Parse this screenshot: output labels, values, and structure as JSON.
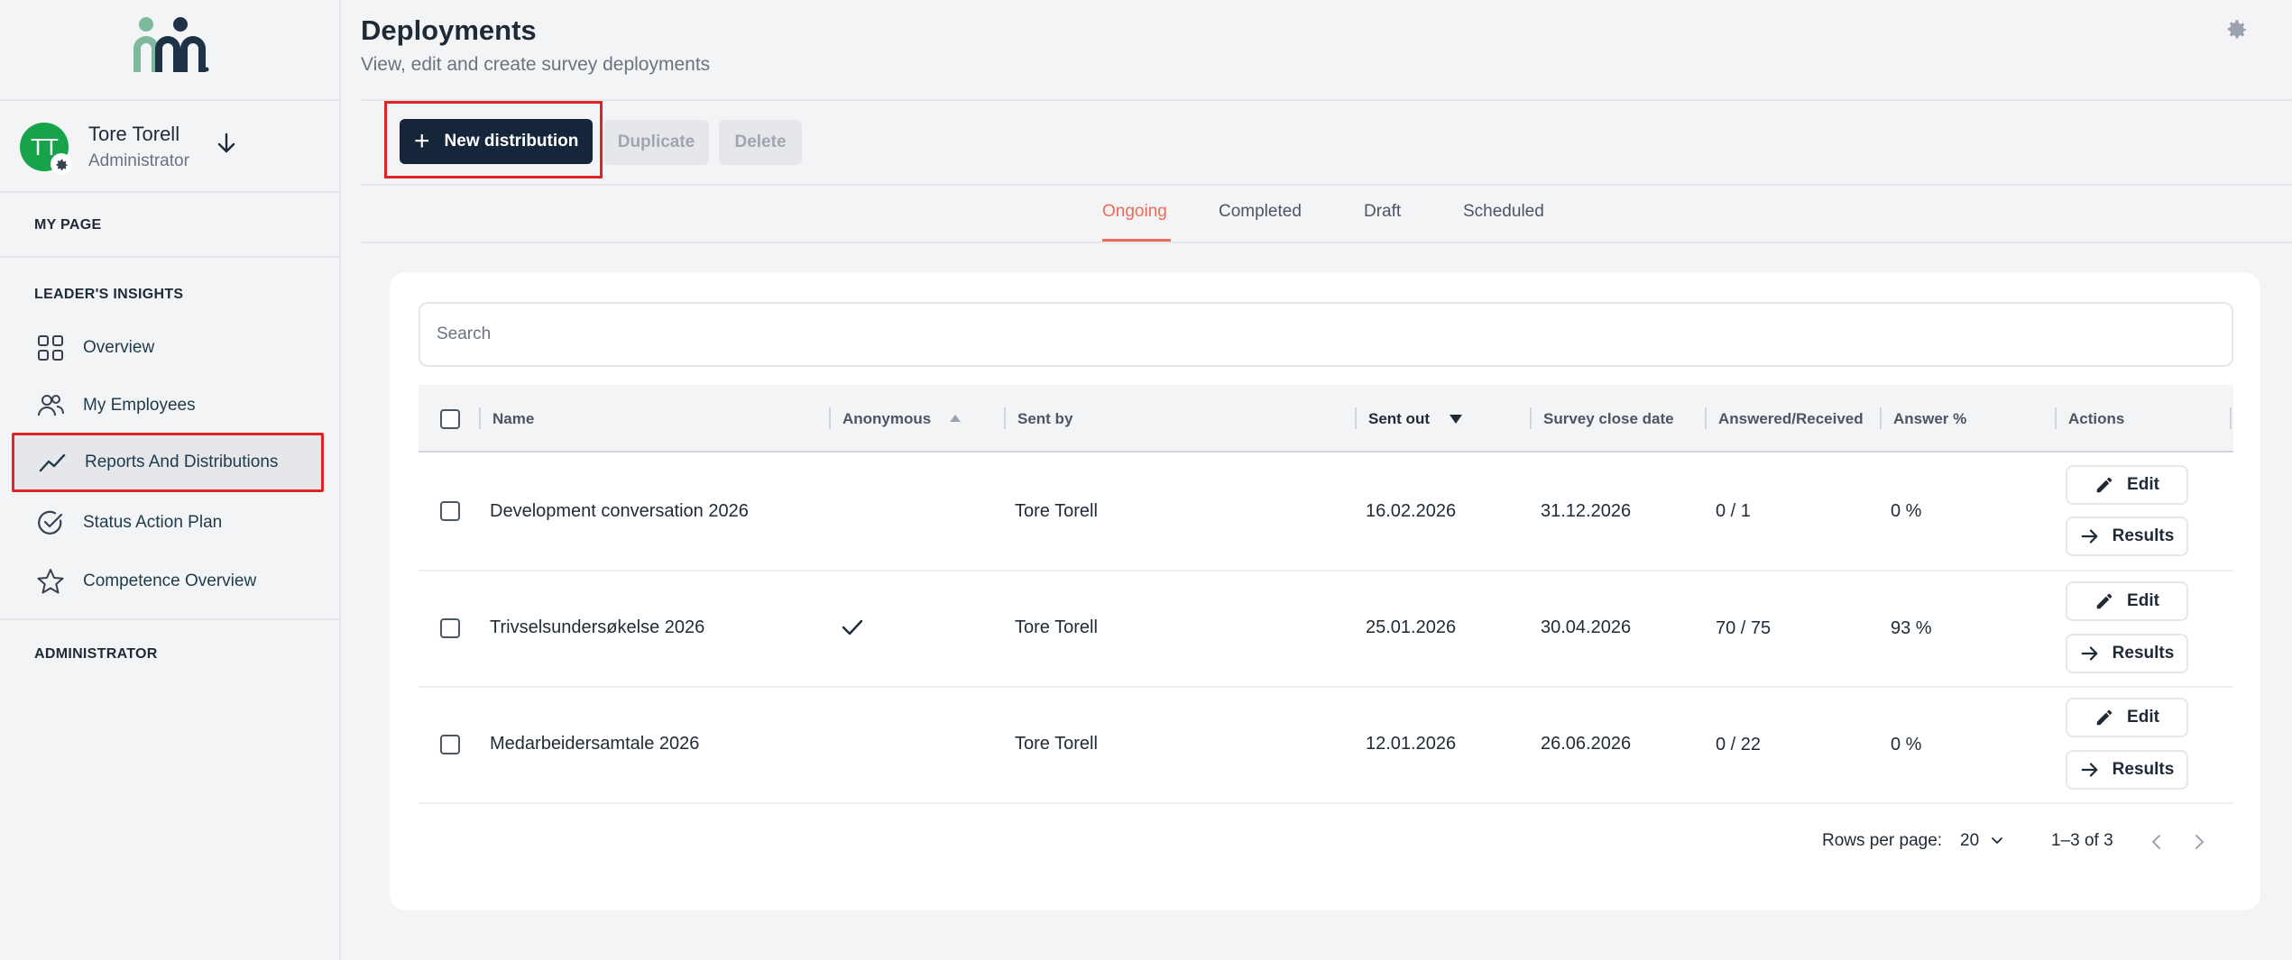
{
  "sidebar": {
    "user": {
      "initials": "TT",
      "name": "Tore Torell",
      "role": "Administrator"
    },
    "sections": {
      "my_page": "MY PAGE",
      "leaders_insights": "LEADER'S INSIGHTS",
      "administrator": "ADMINISTRATOR"
    },
    "items": [
      {
        "label": "Overview",
        "icon": "grid-icon"
      },
      {
        "label": "My Employees",
        "icon": "users-icon"
      },
      {
        "label": "Reports And Distributions",
        "icon": "trend-line-icon",
        "active": true
      },
      {
        "label": "Status Action Plan",
        "icon": "check-circle-icon"
      },
      {
        "label": "Competence Overview",
        "icon": "star-icon"
      }
    ]
  },
  "header": {
    "title": "Deployments",
    "subtitle": "View, edit and create survey deployments"
  },
  "toolbar": {
    "new_label": "New distribution",
    "duplicate_label": "Duplicate",
    "delete_label": "Delete"
  },
  "tabs": [
    "Ongoing",
    "Completed",
    "Draft",
    "Scheduled"
  ],
  "active_tab": "Ongoing",
  "search": {
    "placeholder": "Search"
  },
  "table": {
    "columns": [
      "Name",
      "Anonymous",
      "Sent by",
      "Sent out",
      "Survey close date",
      "Answered/Received",
      "Answer %",
      "Actions"
    ],
    "sorted_column": "Sent out",
    "rows": [
      {
        "name": "Development conversation 2026",
        "anonymous": false,
        "sent_by": "Tore Torell",
        "sent_out": "16.02.2026",
        "close": "31.12.2026",
        "answered": "0 / 1",
        "pct": "0 %"
      },
      {
        "name": "Trivselsundersøkelse 2026",
        "anonymous": true,
        "sent_by": "Tore Torell",
        "sent_out": "25.01.2026",
        "close": "30.04.2026",
        "answered": "70 / 75",
        "pct": "93 %"
      },
      {
        "name": "Medarbeidersamtale 2026",
        "anonymous": false,
        "sent_by": "Tore Torell",
        "sent_out": "12.01.2026",
        "close": "26.06.2026",
        "answered": "0 / 22",
        "pct": "0 %"
      }
    ],
    "edit_label": "Edit",
    "results_label": "Results"
  },
  "pagination": {
    "rows_label": "Rows per page:",
    "rows_value": "20",
    "range": "1–3 of 3"
  },
  "colors": {
    "accent": "#ef6a55",
    "primary": "#15263a",
    "highlight": "#e02424"
  }
}
